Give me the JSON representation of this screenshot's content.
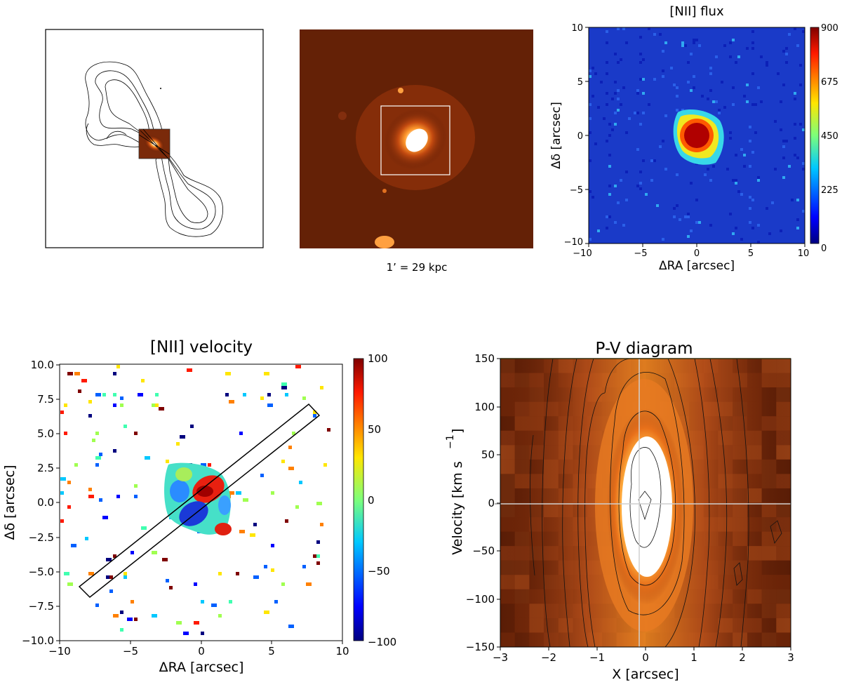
{
  "figure": {
    "caption_scale": "1’ = 29 kpc",
    "flux_map": {
      "title": "[NII] flux",
      "xlabel": "ΔRA [arcsec]",
      "ylabel": "Δδ [arcsec]",
      "x_ticks": [
        "−10",
        "−5",
        "0",
        "5",
        "10"
      ],
      "y_ticks": [
        "10",
        "5",
        "0",
        "−5",
        "−10"
      ],
      "colorbar_ticks": [
        "900",
        "675",
        "450",
        "225",
        "0"
      ]
    },
    "velocity_map": {
      "title": "[NII] velocity",
      "xlabel": "ΔRA [arcsec]",
      "ylabel": "Δδ [arcsec]",
      "x_ticks": [
        "−10",
        "−5",
        "0",
        "5",
        "10"
      ],
      "y_ticks": [
        "10.0",
        "7.5",
        "5.0",
        "2.5",
        "0.0",
        "−2.5",
        "−5.0",
        "−7.5",
        "−10.0"
      ],
      "colorbar_ticks": [
        "100",
        "50",
        "0",
        "−50",
        "−100"
      ]
    },
    "pv_diagram": {
      "title": "P-V diagram",
      "xlabel": "X [arcsec]",
      "ylabel": "Velocity [km s",
      "ylabel_sup": "−1",
      "ylabel_end": "]",
      "x_ticks": [
        "−3",
        "−2",
        "−1",
        "0",
        "1",
        "2",
        "3"
      ],
      "y_ticks": [
        "150",
        "100",
        "50",
        "0",
        "−50",
        "−100",
        "−150"
      ]
    }
  },
  "chart_data": [
    {
      "type": "heatmap",
      "title": "[NII] flux",
      "xlabel": "ΔRA [arcsec]",
      "ylabel": "Δδ [arcsec]",
      "xlim": [
        -10,
        10
      ],
      "ylim": [
        -10,
        10
      ],
      "colorbar": {
        "range": [
          0,
          900
        ],
        "ticks": [
          0,
          225,
          450,
          675,
          900
        ],
        "colormap": "jet"
      },
      "source": {
        "x": 0,
        "y": 0,
        "peak": 900
      }
    },
    {
      "type": "heatmap",
      "title": "[NII] velocity",
      "xlabel": "ΔRA [arcsec]",
      "ylabel": "Δδ [arcsec]",
      "xlim": [
        -10,
        10
      ],
      "ylim": [
        -10,
        10
      ],
      "colorbar": {
        "range": [
          -100,
          100
        ],
        "ticks": [
          -100,
          -50,
          0,
          50,
          100
        ],
        "colormap": "jet"
      },
      "slit": {
        "center": [
          0,
          0
        ],
        "length_arcsec": 21,
        "width_arcsec": 1.0,
        "pa_deg": 33
      }
    },
    {
      "type": "heatmap",
      "title": "P-V diagram",
      "xlabel": "X [arcsec]",
      "ylabel": "Velocity [km s−1]",
      "xlim": [
        -3,
        3
      ],
      "ylim": [
        -150,
        150
      ],
      "reference_lines": {
        "x": -0.1,
        "y": 0
      }
    }
  ]
}
